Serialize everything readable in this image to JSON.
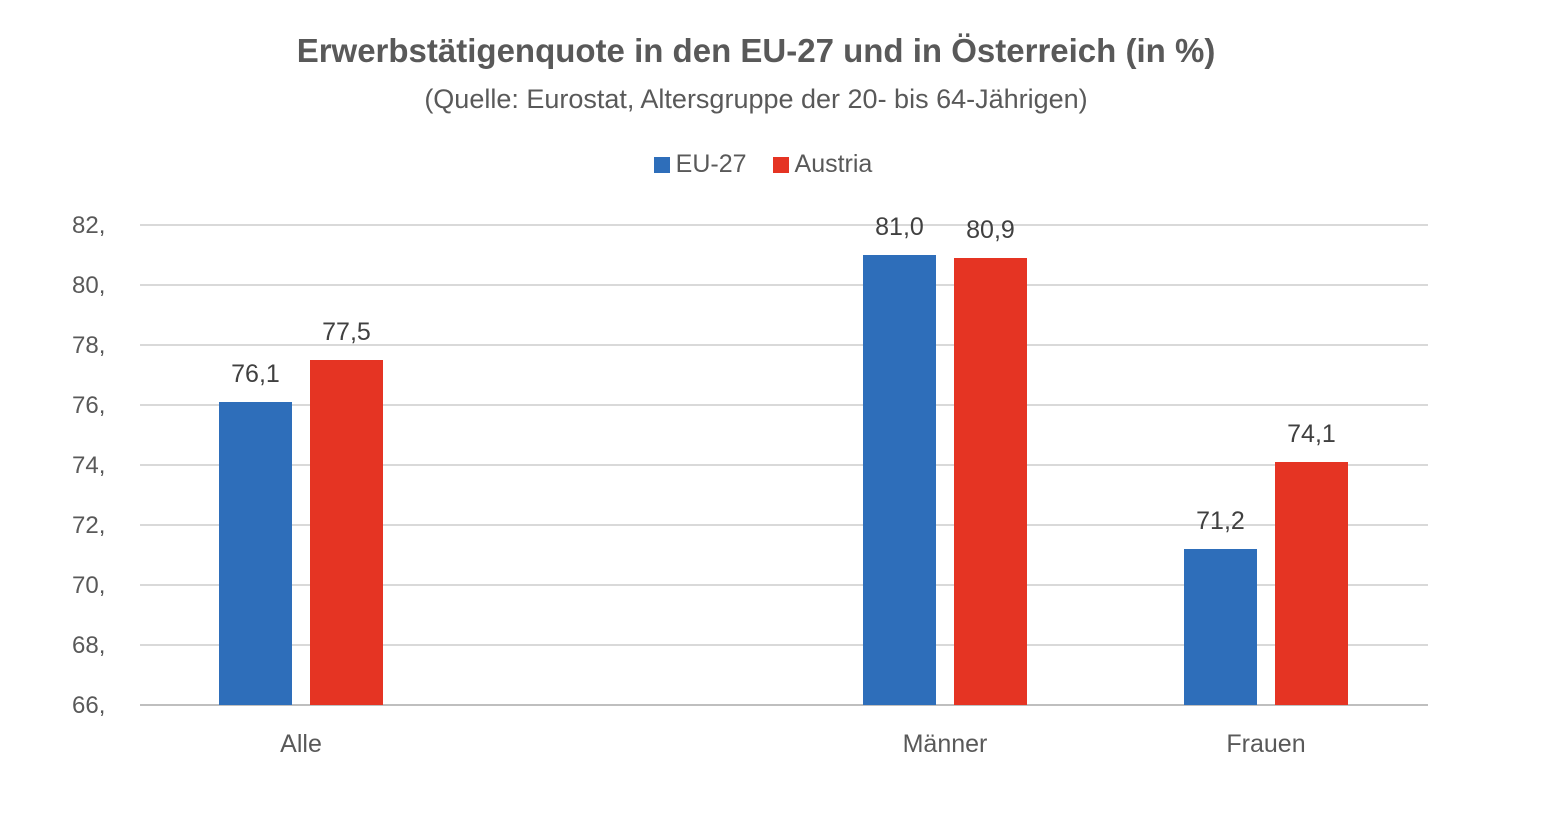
{
  "chart_data": {
    "type": "bar",
    "title": "Erwerbstätigenquote in den EU-27 und in Österreich (in %)",
    "subtitle": "(Quelle: Eurostat, Altersgruppe der 20- bis 64-Jährigen)",
    "categories": [
      "Alle",
      "Männer",
      "Frauen"
    ],
    "series": [
      {
        "name": "EU-27",
        "color": "#2E6EBA",
        "values": [
          76.1,
          81.0,
          71.2
        ],
        "labels": [
          "76,1",
          "81,0",
          "71,2"
        ]
      },
      {
        "name": "Austria",
        "color": "#E53423",
        "values": [
          77.5,
          80.9,
          74.1
        ],
        "labels": [
          "77,5",
          "80,9",
          "74,1"
        ]
      }
    ],
    "ylim": [
      66,
      82
    ],
    "yticks": [
      66,
      68,
      70,
      72,
      74,
      76,
      78,
      80,
      82
    ],
    "ytick_labels": [
      "66,",
      "68,",
      "70,",
      "72,",
      "74,",
      "76,",
      "78,",
      "80,",
      "82,"
    ],
    "grid": true,
    "legend_position": "top-center",
    "xlabel": "",
    "ylabel": ""
  }
}
